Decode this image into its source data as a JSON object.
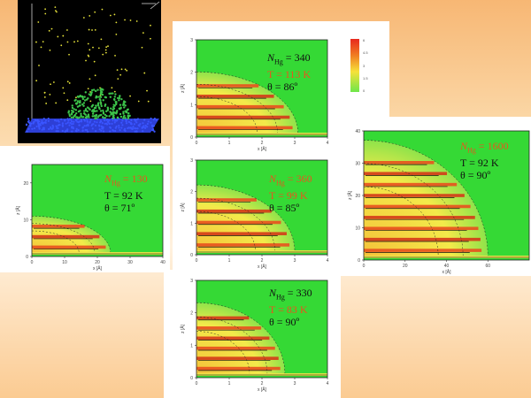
{
  "chart_data": [
    {
      "type": "heatmap",
      "id": "p340",
      "annotation": {
        "n_label": "N",
        "n_sub": "Hg",
        "n_value": "= 340",
        "t_line": "T = 113 K",
        "theta_line": "θ = 86º",
        "colors": [
          "#111111",
          "#e8551e",
          "#111111"
        ]
      },
      "xticks": [
        "0",
        "1",
        "2",
        "3",
        "4"
      ],
      "yticks": [
        "0",
        "1",
        "2",
        "3"
      ],
      "xlabel": "x [Å]",
      "ylabel": "z [Å]",
      "xlim": [
        0,
        4
      ],
      "ylim": [
        0,
        3
      ],
      "drop_extent": [
        3.1,
        1.9
      ],
      "stripe_count": 5
    },
    {
      "type": "heatmap",
      "id": "p130",
      "annotation": {
        "n_label": "N",
        "n_sub": "Hg",
        "n_value": "= 130",
        "t_line": "T = 92 K",
        "theta_line": "θ = 71º",
        "colors": [
          "#e8551e",
          "#111111",
          "#111111"
        ]
      },
      "xticks": [
        "0",
        "10",
        "20",
        "30",
        "40"
      ],
      "yticks": [
        "0",
        "10",
        "20"
      ],
      "xlabel": "x [Å]",
      "ylabel": "z [Å]",
      "xlim": [
        0,
        40
      ],
      "ylim": [
        0,
        25
      ],
      "drop_extent": [
        24,
        10
      ],
      "stripe_count": 3
    },
    {
      "type": "heatmap",
      "id": "p360",
      "annotation": {
        "n_label": "N",
        "n_sub": "Hg",
        "n_value": "= 360",
        "t_line": "T = 99 K",
        "theta_line": "θ = 85º",
        "colors": [
          "#e8551e",
          "#e8551e",
          "#111111"
        ]
      },
      "xticks": [
        "0",
        "1",
        "2",
        "3",
        "4"
      ],
      "yticks": [
        "0",
        "1",
        "2",
        "3"
      ],
      "xlabel": "x [Å]",
      "ylabel": "z [Å]",
      "xlim": [
        0,
        4
      ],
      "ylim": [
        0,
        3
      ],
      "drop_extent": [
        3.0,
        2.1
      ],
      "stripe_count": 5
    },
    {
      "type": "heatmap",
      "id": "p1600",
      "annotation": {
        "n_label": "N",
        "n_sub": "Hg",
        "n_value": "= 1600",
        "t_line": "T = 92 K",
        "theta_line": "θ = 90º",
        "colors": [
          "#e8551e",
          "#111111",
          "#111111"
        ]
      },
      "xticks": [
        "0",
        "20",
        "40",
        "60"
      ],
      "yticks": [
        "0",
        "10",
        "20",
        "30",
        "40"
      ],
      "xlabel": "x [Å]",
      "ylabel": "z [Å]",
      "xlim": [
        0,
        80
      ],
      "ylim": [
        0,
        40
      ],
      "drop_extent": [
        60,
        36
      ],
      "stripe_count": 9
    },
    {
      "type": "heatmap",
      "id": "p330",
      "annotation": {
        "n_label": "N",
        "n_sub": "Hg",
        "n_value": "= 330",
        "t_line": "T = 83 K",
        "theta_line": "θ = 90º",
        "colors": [
          "#111111",
          "#e8551e",
          "#111111"
        ]
      },
      "xticks": [
        "0",
        "1",
        "2",
        "3",
        "4"
      ],
      "yticks": [
        "0",
        "1",
        "2",
        "3"
      ],
      "xlabel": "x [Å]",
      "ylabel": "z [Å]",
      "xlim": [
        0,
        4
      ],
      "ylim": [
        0,
        3
      ],
      "drop_extent": [
        2.7,
        2.2
      ],
      "stripe_count": 6
    }
  ],
  "colorbar": {
    "ticks": [
      "6",
      "4.5",
      "3",
      "1.5",
      "0"
    ]
  },
  "snapshot": {
    "substrate_color": "#2d3fd6",
    "droplet_color": "#3cc24a",
    "vapor_color": "#e6e23a"
  }
}
